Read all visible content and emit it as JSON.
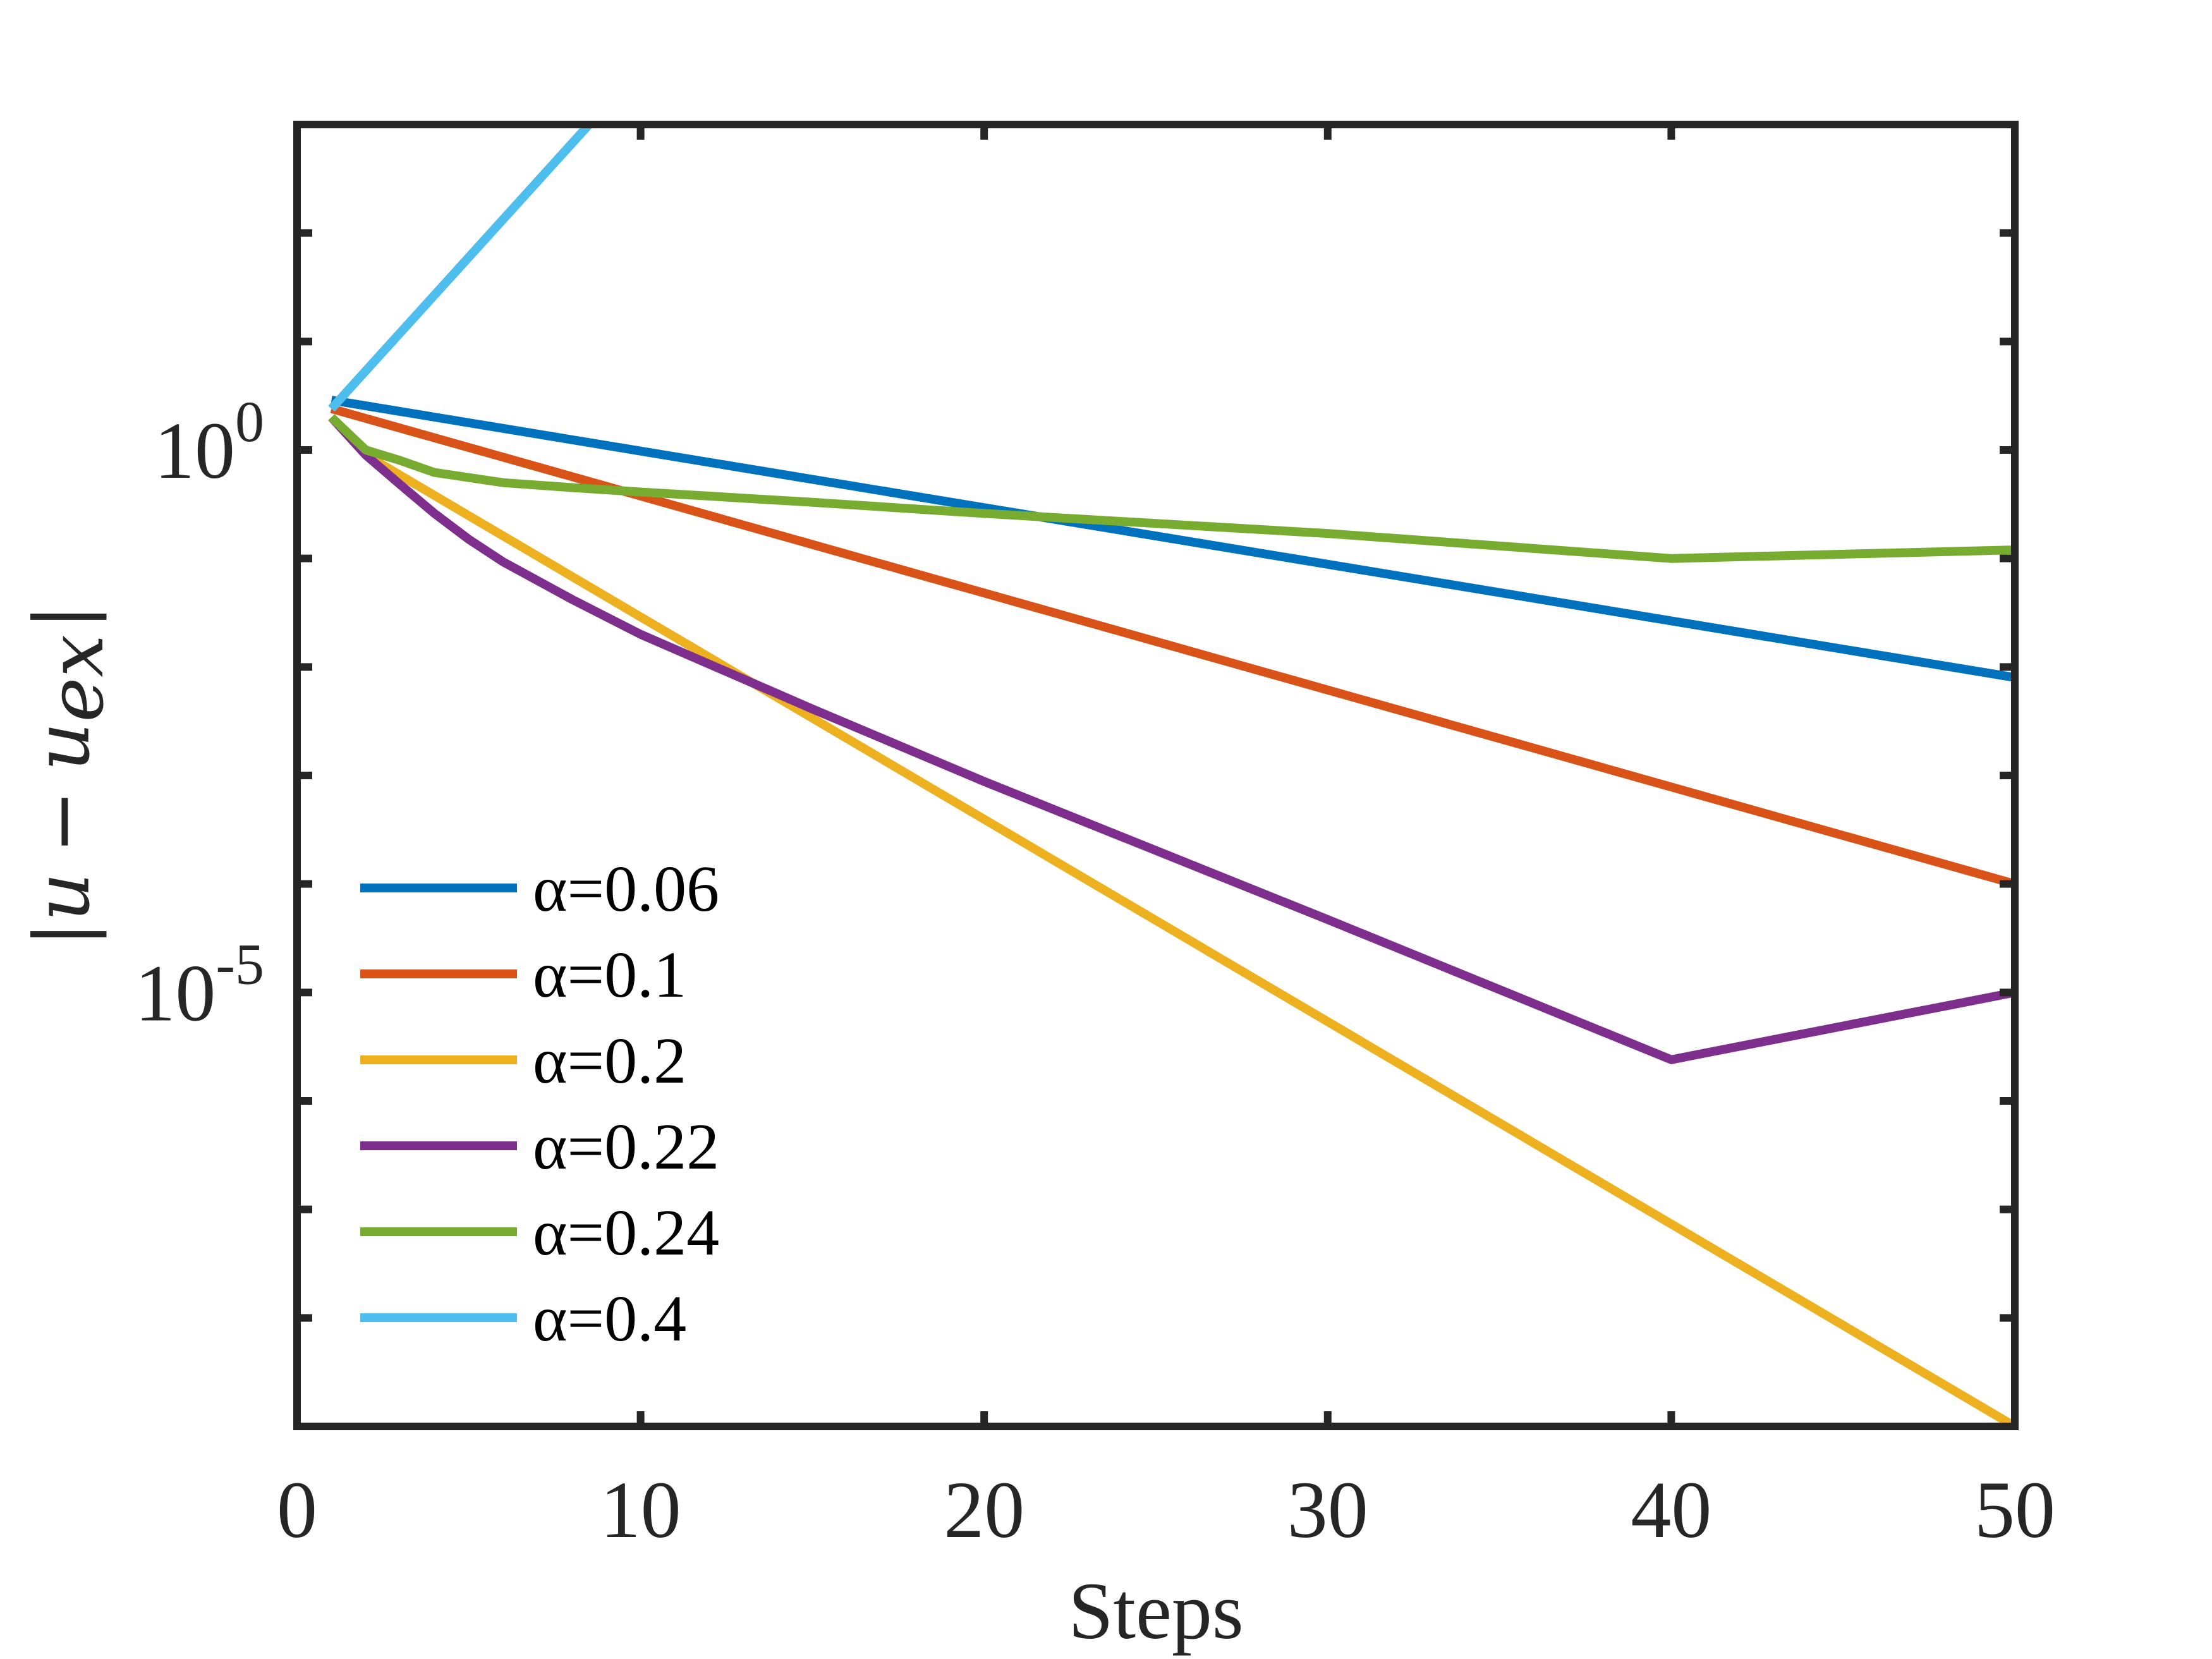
{
  "chart_data": {
    "type": "line",
    "xlabel": "Steps",
    "ylabel": {
      "bar_left": "|",
      "u": "u",
      "minus": "−",
      "u2": "u",
      "sub": "ex",
      "bar_right": "|"
    },
    "xlim": [
      0,
      50
    ],
    "ylim": [
      1e-09,
      1000.0
    ],
    "yscale": "log",
    "x_ticks": [
      "0",
      "10",
      "20",
      "30",
      "40",
      "50"
    ],
    "y_ticks": [
      {
        "value": 1,
        "base": "10",
        "exp": "0"
      },
      {
        "value": 1e-05,
        "base": "10",
        "exp": "-5"
      }
    ],
    "grid": false,
    "legend_position": "lower-left",
    "series": [
      {
        "name": "α=0.06",
        "color": "#0072BD",
        "x": [
          1,
          50
        ],
        "y": [
          2.88,
          0.008
        ]
      },
      {
        "name": "α=0.1",
        "color": "#D95319",
        "x": [
          1,
          50
        ],
        "y": [
          2.4,
          0.0001
        ]
      },
      {
        "name": "α=0.2",
        "color": "#EDB120",
        "x": [
          1,
          2,
          50
        ],
        "y": [
          2.0,
          0.9,
          1e-09
        ]
      },
      {
        "name": "α=0.22",
        "color": "#7E2F8E",
        "x": [
          1,
          2,
          3,
          4,
          5,
          6,
          8,
          10,
          15,
          20,
          30,
          40,
          50
        ],
        "y": [
          2.0,
          0.9,
          0.48,
          0.26,
          0.15,
          0.093,
          0.042,
          0.02,
          0.0041,
          0.00088,
          4.7e-05,
          2.4e-06,
          1e-05
        ]
      },
      {
        "name": "α=0.24",
        "color": "#77AC30",
        "x": [
          1,
          2,
          3,
          4,
          6,
          8,
          10,
          15,
          20,
          30,
          40,
          50
        ],
        "y": [
          2.0,
          1.0,
          0.8,
          0.62,
          0.5,
          0.45,
          0.41,
          0.33,
          0.26,
          0.17,
          0.1,
          0.12
        ]
      },
      {
        "name": "α=0.4",
        "color": "#4DBEEE",
        "x": [
          1,
          8.5
        ],
        "y": [
          2.4,
          1000
        ]
      }
    ]
  }
}
